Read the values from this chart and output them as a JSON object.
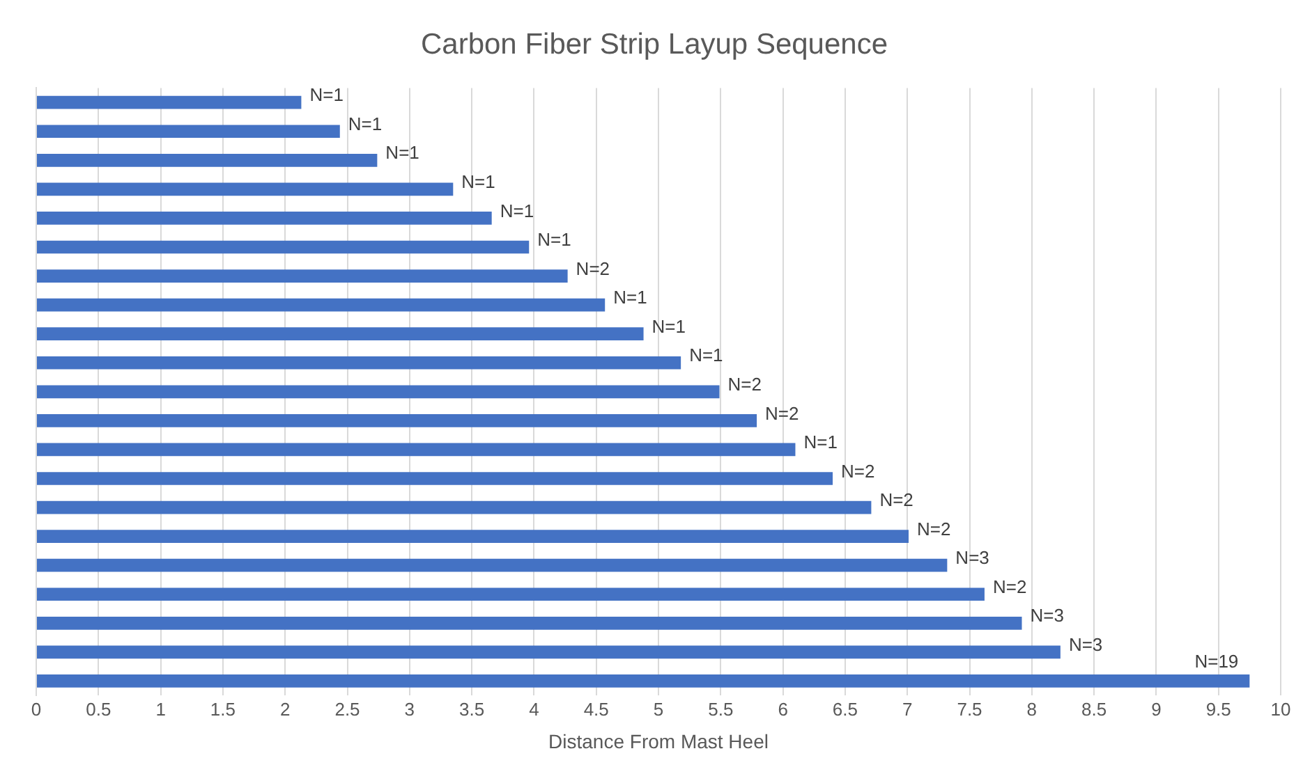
{
  "chart_data": {
    "type": "bar",
    "orientation": "horizontal",
    "title": "Carbon Fiber Strip Layup Sequence",
    "xlabel": "Distance From Mast Heel",
    "categories": [
      null,
      null,
      null,
      null,
      null,
      null,
      null,
      null,
      null,
      null,
      null,
      null,
      null,
      null,
      null,
      null,
      null,
      null,
      null,
      null,
      null
    ],
    "values": [
      2.13,
      2.44,
      2.74,
      3.35,
      3.66,
      3.96,
      4.27,
      4.57,
      4.88,
      5.18,
      5.49,
      5.79,
      6.1,
      6.4,
      6.71,
      7.01,
      7.32,
      7.62,
      7.92,
      8.23,
      9.75
    ],
    "annotations": [
      "N=1",
      "N=1",
      "N=1",
      "N=1",
      "N=1",
      "N=1",
      "N=2",
      "N=1",
      "N=1",
      "N=1",
      "N=2",
      "N=2",
      "N=1",
      "N=2",
      "N=2",
      "N=2",
      "N=3",
      "N=2",
      "N=3",
      "N=3",
      "N=19"
    ],
    "color": "#4472c4",
    "xlim": [
      0,
      10
    ],
    "xticks": [
      0,
      0.5,
      1,
      1.5,
      2,
      2.5,
      3,
      3.5,
      4,
      4.5,
      5,
      5.5,
      6,
      6.5,
      7,
      7.5,
      8,
      8.5,
      9,
      9.5,
      10
    ],
    "grid": "x",
    "legend": false
  }
}
